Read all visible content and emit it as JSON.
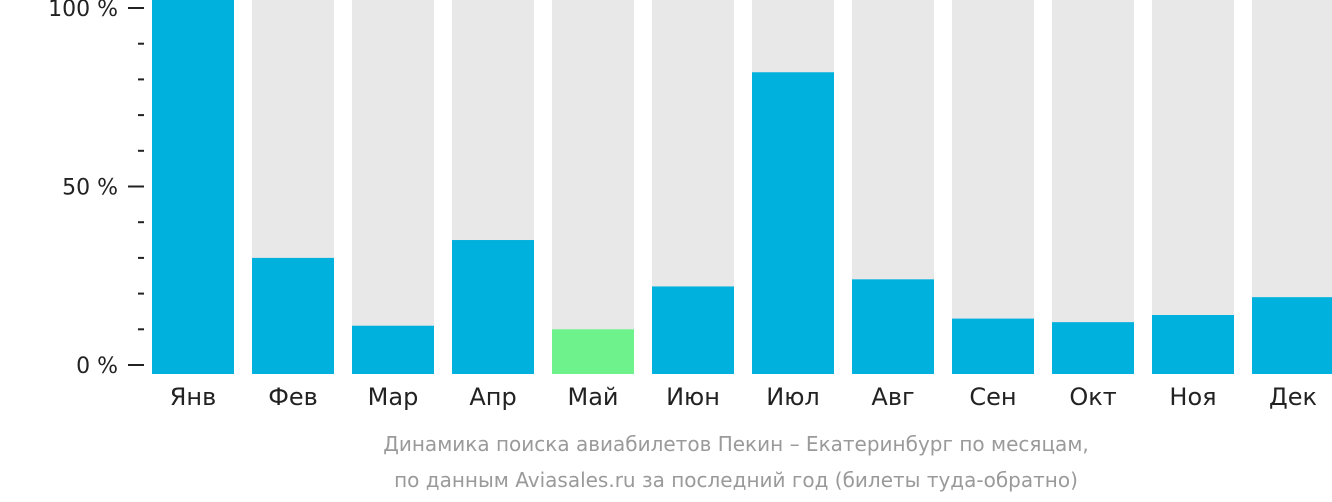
{
  "chart_data": {
    "type": "bar",
    "categories": [
      "Янв",
      "Фев",
      "Мар",
      "Апр",
      "Май",
      "Июн",
      "Июл",
      "Авг",
      "Сен",
      "Окт",
      "Ноя",
      "Дек"
    ],
    "values": [
      100,
      30,
      11,
      35,
      10,
      22,
      82,
      24,
      13,
      12,
      14,
      19
    ],
    "highlight_index": 4,
    "ylim": [
      0,
      100
    ],
    "yticks": [
      {
        "value": 0,
        "label": "0 %"
      },
      {
        "value": 50,
        "label": "50 %"
      },
      {
        "value": 100,
        "label": "100 %"
      }
    ],
    "minor_tick_step": 10,
    "colors": {
      "bar": "#00b0dd",
      "highlight": "#6ef28c",
      "background_bar": "#e8e8e8",
      "axis": "#222222"
    },
    "title": "Динамика поиска авиабилетов Пекин – Екатеринбург по месяцам,",
    "subtitle": "по данным Aviasales.ru за последний год (билеты туда-обратно)"
  }
}
